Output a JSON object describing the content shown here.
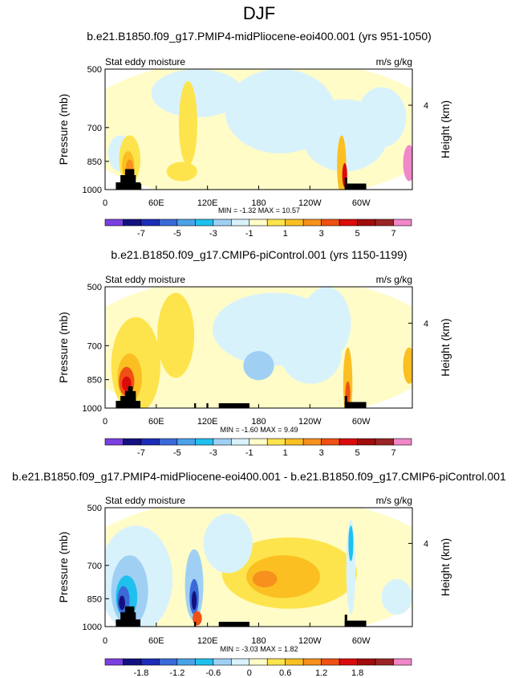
{
  "figure_title": "DJF",
  "colors": {
    "palette": [
      "#7a3fe0",
      "#13117f",
      "#1b2db8",
      "#3a6ad8",
      "#4aa2e8",
      "#20c0ee",
      "#9fd0f4",
      "#d8f2fc",
      "#fffcc8",
      "#fde44c",
      "#fbbf22",
      "#f7901c",
      "#f05014",
      "#dc0a0a",
      "#a00c0c",
      "#9a2424",
      "#f087c8"
    ],
    "terrain": "#000000"
  },
  "chart_data": [
    {
      "type": "heatmap",
      "title": "b.e21.B1850.f09_g17.PMIP4-midPliocene-eoi400.001 (yrs 951-1050)",
      "left_label": "Stat eddy moisture",
      "right_label": "m/s g/kg",
      "ylabel": "Pressure (mb)",
      "y2label": "Height (km)",
      "y_ticks": [
        "500",
        "700",
        "850",
        "1000"
      ],
      "y_tick_values": [
        500,
        700,
        850,
        1000
      ],
      "y2_ticks": [
        "4"
      ],
      "x_ticks": [
        "0",
        "60E",
        "120E",
        "180",
        "120W",
        "60W"
      ],
      "x_tick_values": [
        0,
        60,
        120,
        180,
        240,
        300
      ],
      "xlim": [
        0,
        360
      ],
      "ylim": [
        1000,
        500
      ],
      "stats": {
        "min_label": "MIN =",
        "min": "-1.32",
        "max_label": "MAX =",
        "max": "10.57"
      },
      "colorbar_labels": [
        "-7",
        "-5",
        "-3",
        "-1",
        "1",
        "3",
        "5",
        "7"
      ],
      "colorbar_levels": [
        -8,
        -7,
        -6,
        -5,
        -4,
        -3,
        -2,
        -1,
        0,
        1,
        2,
        3,
        4,
        5,
        6,
        7,
        8
      ]
    },
    {
      "type": "heatmap",
      "title": "b.e21.B1850.f09_g17.CMIP6-piControl.001 (yrs 1150-1199)",
      "left_label": "Stat eddy moisture",
      "right_label": "m/s g/kg",
      "ylabel": "Pressure (mb)",
      "y2label": "Height (km)",
      "y_ticks": [
        "500",
        "700",
        "850",
        "1000"
      ],
      "y_tick_values": [
        500,
        700,
        850,
        1000
      ],
      "y2_ticks": [
        "4"
      ],
      "x_ticks": [
        "0",
        "60E",
        "120E",
        "180",
        "120W",
        "60W"
      ],
      "x_tick_values": [
        0,
        60,
        120,
        180,
        240,
        300
      ],
      "xlim": [
        0,
        360
      ],
      "ylim": [
        1000,
        500
      ],
      "stats": {
        "min_label": "MIN =",
        "min": "-1.60",
        "max_label": "MAX =",
        "max": "9.49"
      },
      "colorbar_labels": [
        "-7",
        "-5",
        "-3",
        "-1",
        "1",
        "3",
        "5",
        "7"
      ],
      "colorbar_levels": [
        -8,
        -7,
        -6,
        -5,
        -4,
        -3,
        -2,
        -1,
        0,
        1,
        2,
        3,
        4,
        5,
        6,
        7,
        8
      ]
    },
    {
      "type": "heatmap",
      "title": "b.e21.B1850.f09_g17.PMIP4-midPliocene-eoi400.001 - b.e21.B1850.f09_g17.CMIP6-piControl.001",
      "left_label": "Stat eddy moisture",
      "right_label": "m/s g/kg",
      "ylabel": "Pressure (mb)",
      "y2label": "Height (km)",
      "y_ticks": [
        "500",
        "700",
        "850",
        "1000"
      ],
      "y_tick_values": [
        500,
        700,
        850,
        1000
      ],
      "y2_ticks": [
        "4"
      ],
      "x_ticks": [
        "0",
        "60E",
        "120E",
        "180",
        "120W",
        "60W"
      ],
      "x_tick_values": [
        0,
        60,
        120,
        180,
        240,
        300
      ],
      "xlim": [
        0,
        360
      ],
      "ylim": [
        1000,
        500
      ],
      "stats": {
        "min_label": "MIN =",
        "min": "-3.03",
        "max_label": "MAX =",
        "max": "1.82"
      },
      "colorbar_labels": [
        "-1.8",
        "-1.2",
        "-0.6",
        "0",
        "0.6",
        "1.2",
        "1.8"
      ],
      "colorbar_levels": [
        -2.4,
        -2.1,
        -1.8,
        -1.5,
        -1.2,
        -0.9,
        -0.6,
        -0.3,
        0,
        0.3,
        0.6,
        0.9,
        1.2,
        1.5,
        1.8,
        2.1,
        2.4
      ]
    }
  ]
}
